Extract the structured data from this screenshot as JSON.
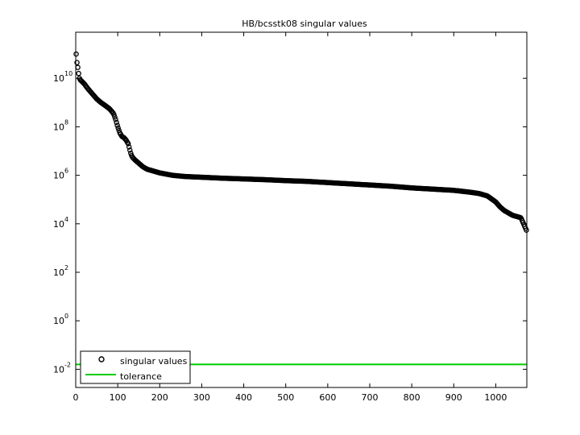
{
  "chart_data": {
    "type": "scatter",
    "title": "HB/bcsstk08 singular values",
    "xlabel": "",
    "ylabel": "",
    "y_scale": "log",
    "xlim": [
      0,
      1074
    ],
    "ylim_log10": [
      -2.75,
      11.9
    ],
    "grid": false,
    "legend_position": "bottom-left",
    "x_ticks": [
      0,
      100,
      200,
      300,
      400,
      500,
      600,
      700,
      800,
      900,
      1000
    ],
    "y_ticks": [
      {
        "base": "10",
        "exp": "10",
        "log10": 10
      },
      {
        "base": "10",
        "exp": "8",
        "log10": 8
      },
      {
        "base": "10",
        "exp": "6",
        "log10": 6
      },
      {
        "base": "10",
        "exp": "4",
        "log10": 4
      },
      {
        "base": "10",
        "exp": "2",
        "log10": 2
      },
      {
        "base": "10",
        "exp": "0",
        "log10": 0
      },
      {
        "base": "10",
        "exp": "-2",
        "log10": -2
      }
    ],
    "series": [
      {
        "name": "singular values",
        "marker": "circle",
        "color": "#000000",
        "profile_log10": [
          [
            1,
            11.0
          ],
          [
            2,
            10.75
          ],
          [
            4,
            10.55
          ],
          [
            6,
            10.35
          ],
          [
            8,
            10.05
          ],
          [
            10,
            9.95
          ],
          [
            20,
            9.78
          ],
          [
            30,
            9.55
          ],
          [
            40,
            9.35
          ],
          [
            50,
            9.15
          ],
          [
            60,
            9.0
          ],
          [
            70,
            8.88
          ],
          [
            80,
            8.75
          ],
          [
            90,
            8.55
          ],
          [
            95,
            8.3
          ],
          [
            100,
            8.0
          ],
          [
            105,
            7.75
          ],
          [
            110,
            7.6
          ],
          [
            115,
            7.55
          ],
          [
            120,
            7.45
          ],
          [
            125,
            7.3
          ],
          [
            128,
            7.1
          ],
          [
            132,
            6.85
          ],
          [
            135,
            6.75
          ],
          [
            140,
            6.65
          ],
          [
            150,
            6.5
          ],
          [
            160,
            6.35
          ],
          [
            170,
            6.25
          ],
          [
            180,
            6.2
          ],
          [
            200,
            6.1
          ],
          [
            230,
            6.0
          ],
          [
            260,
            5.95
          ],
          [
            300,
            5.92
          ],
          [
            350,
            5.88
          ],
          [
            400,
            5.85
          ],
          [
            450,
            5.82
          ],
          [
            500,
            5.78
          ],
          [
            550,
            5.75
          ],
          [
            600,
            5.7
          ],
          [
            650,
            5.65
          ],
          [
            700,
            5.6
          ],
          [
            750,
            5.55
          ],
          [
            800,
            5.48
          ],
          [
            850,
            5.43
          ],
          [
            900,
            5.38
          ],
          [
            940,
            5.3
          ],
          [
            960,
            5.25
          ],
          [
            980,
            5.15
          ],
          [
            1000,
            4.9
          ],
          [
            1010,
            4.7
          ],
          [
            1020,
            4.55
          ],
          [
            1030,
            4.45
          ],
          [
            1040,
            4.35
          ],
          [
            1050,
            4.3
          ],
          [
            1060,
            4.25
          ],
          [
            1065,
            4.05
          ],
          [
            1070,
            3.85
          ],
          [
            1074,
            3.7
          ]
        ]
      },
      {
        "name": "tolerance",
        "marker": "line",
        "color": "#00cc00",
        "log10_value": -1.8
      }
    ]
  }
}
